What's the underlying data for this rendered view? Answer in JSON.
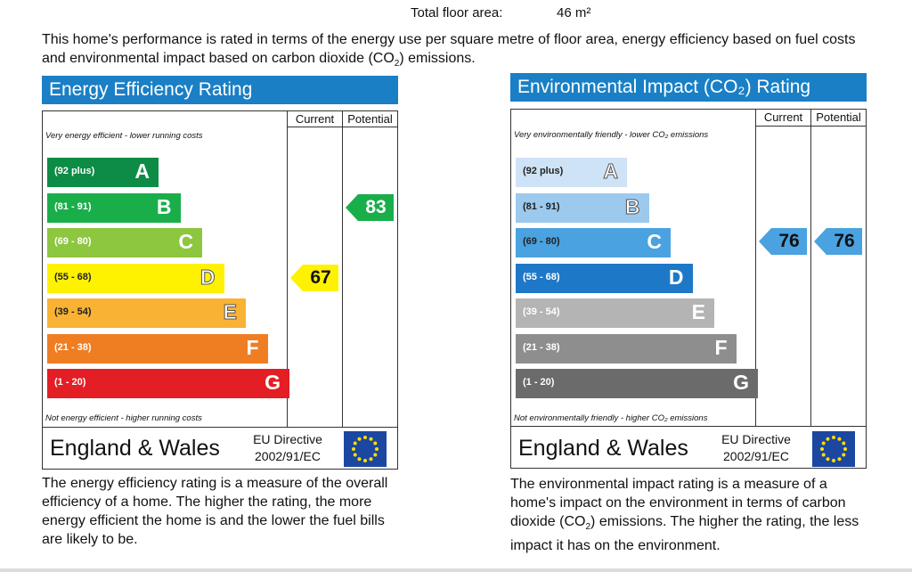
{
  "header": {
    "floor_area_label": "Total floor area:",
    "floor_area_value": "46 m²"
  },
  "intro": {
    "text_before": "This home's performance is rated in terms of the energy use per square metre of floor area, energy efficiency based on fuel costs and environmental impact based on carbon dioxide (CO",
    "subscript": "2",
    "text_after": ") emissions."
  },
  "columns": {
    "current": "Current",
    "potential": "Potential"
  },
  "energy": {
    "title": "Energy Efficiency Rating",
    "top_caption": "Very energy efficient - lower running costs",
    "bottom_caption": "Not energy efficient - higher running costs",
    "bands": [
      {
        "range": "(92 plus)",
        "letter": "A",
        "color": "#0c8c45"
      },
      {
        "range": "(81 - 91)",
        "letter": "B",
        "color": "#1aae4b"
      },
      {
        "range": "(69 - 80)",
        "letter": "C",
        "color": "#8dc63f"
      },
      {
        "range": "(55 - 68)",
        "letter": "D",
        "color": "#fff200"
      },
      {
        "range": "(39 - 54)",
        "letter": "E",
        "color": "#f9b233"
      },
      {
        "range": "(21 - 38)",
        "letter": "F",
        "color": "#ef7d22"
      },
      {
        "range": "(1 - 20)",
        "letter": "G",
        "color": "#e31e24"
      }
    ],
    "current": {
      "value": "67",
      "color": "#fff200",
      "text_color": "#111111"
    },
    "potential": {
      "value": "83",
      "color": "#1aae4b",
      "text_color": "#ffffff"
    },
    "region": "England & Wales",
    "directive_line1": "EU Directive",
    "directive_line2": "2002/91/EC",
    "description": "The energy efficiency rating is a measure of the overall efficiency of a home. The higher the rating, the more energy efficient the home is and the lower the fuel bills are likely to be."
  },
  "environment": {
    "title": "Environmental Impact (CO₂) Rating",
    "top_caption": "Very environmentally friendly - lower CO₂ emissions",
    "bottom_caption": "Not environmentally friendly - higher CO₂ emissions",
    "bands": [
      {
        "range": "(92 plus)",
        "letter": "A",
        "color": "#cfe3f6"
      },
      {
        "range": "(81 - 91)",
        "letter": "B",
        "color": "#9cc9ee"
      },
      {
        "range": "(69 - 80)",
        "letter": "C",
        "color": "#4aa2e0"
      },
      {
        "range": "(55 - 68)",
        "letter": "D",
        "color": "#1e78c8"
      },
      {
        "range": "(39 - 54)",
        "letter": "E",
        "color": "#b4b4b4"
      },
      {
        "range": "(21 - 38)",
        "letter": "F",
        "color": "#8e8e8e"
      },
      {
        "range": "(1 - 20)",
        "letter": "G",
        "color": "#6b6b6b"
      }
    ],
    "current": {
      "value": "76",
      "color": "#4aa2e0",
      "text_color": "#111111"
    },
    "potential": {
      "value": "76",
      "color": "#4aa2e0",
      "text_color": "#111111"
    },
    "region": "England & Wales",
    "directive_line1": "EU Directive",
    "directive_line2": "2002/91/EC",
    "description_before": "The environmental impact rating is a measure of a home's impact on the environment in terms of carbon dioxide (CO",
    "description_sub": "2",
    "description_after": ") emissions. The higher the rating, the less impact it has on the environment."
  },
  "icons": {
    "flag": "eu-flag-icon"
  }
}
